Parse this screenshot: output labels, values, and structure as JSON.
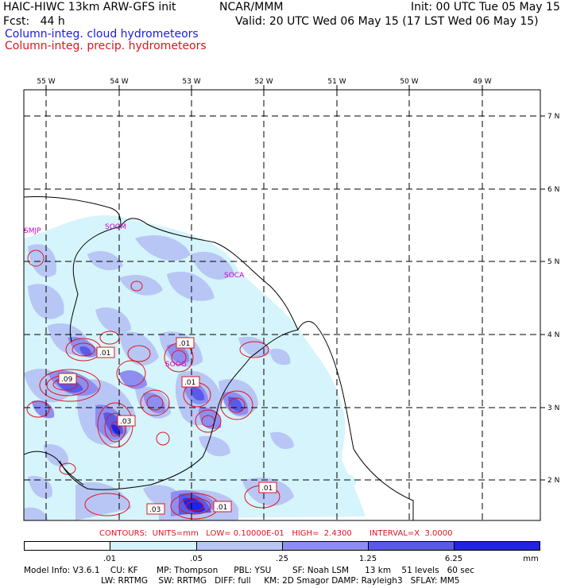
{
  "header": {
    "left_line1": "HAIC-HIWC 13km ARW-GFS init",
    "org": "NCAR/MMM",
    "init": "Init: 00 UTC Tue 05 May 15",
    "fcst": "Fcst:   44 h",
    "valid": "Valid: 20 UTC Wed 06 May 15 (17 LST Wed 06 May 15)",
    "field_cloud": "Column-integ. cloud hydrometeors",
    "field_precip": "Column-integ. precip. hydrometeors"
  },
  "colors": {
    "cloud_text": "#1a1ae6",
    "precip_text": "#e0141e",
    "shade_1": "#d6f4fb",
    "shade_2": "#b8c6f5",
    "shade_3": "#8e8ef0",
    "shade_4": "#5a5ae8",
    "shade_5": "#2222e6",
    "station": "#d000d0"
  },
  "map": {
    "lon_labels": [
      "55 W",
      "54 W",
      "53 W",
      "52 W",
      "51 W",
      "50 W",
      "49 W"
    ],
    "lat_labels": [
      "7 N",
      "6 N",
      "5 N",
      "4 N",
      "3 N",
      "2 N"
    ],
    "stations": [
      "SMJP",
      "SOCM",
      "SOCA",
      "SOOG"
    ],
    "contour_labels": [
      ".01",
      ".01",
      ".09",
      ".01",
      ".03",
      ".01",
      ".03",
      ".01"
    ]
  },
  "contours_line": "CONTOURS:  UNITS=mm   LOW= 0.10000E-01   HIGH=  2.4300       INTERVAL=X  3.0000",
  "colorbar": {
    "labels": [
      ".01",
      ".05",
      ".25",
      "1.25",
      "6.25"
    ],
    "units": "mm"
  },
  "model_info": {
    "line1": "Model Info: V3.6.1    CU: KF       MP: Thompson      PBL: YSU        SF: Noah LSM      13 km    51 levels   60 sec",
    "line2": "LW: RRTMG    SW: RRTMG   DIFF: full     KM: 2D Smagor DAMP: Rayleigh3   SFLAY: MM5"
  }
}
